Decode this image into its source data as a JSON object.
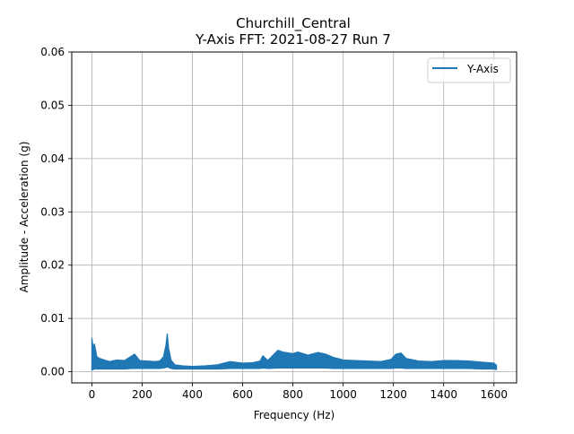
{
  "chart_data": {
    "type": "line",
    "title": "Churchill_Central",
    "subtitle": "Y-Axis FFT: 2021-08-27 Run 7",
    "xlabel": "Frequency (Hz)",
    "ylabel": "Amplitude - Acceleration (g)",
    "xlim": [
      -80,
      1690
    ],
    "ylim": [
      -0.0021,
      0.06
    ],
    "x_ticks": [
      0,
      200,
      400,
      600,
      800,
      1000,
      1200,
      1400,
      1600
    ],
    "x_tick_labels": [
      "0",
      "200",
      "400",
      "600",
      "800",
      "1000",
      "1200",
      "1400",
      "1600"
    ],
    "y_ticks": [
      0.0,
      0.01,
      0.02,
      0.03,
      0.04,
      0.05,
      0.06
    ],
    "y_tick_labels": [
      "0.00",
      "0.01",
      "0.02",
      "0.03",
      "0.04",
      "0.05",
      "0.06"
    ],
    "grid": true,
    "legend_position": "top-right",
    "series": [
      {
        "name": "Y-Axis",
        "color": "#1f77b4",
        "x": [
          0,
          5,
          10,
          20,
          30,
          50,
          70,
          100,
          130,
          160,
          170,
          190,
          220,
          250,
          270,
          285,
          295,
          300,
          305,
          315,
          330,
          360,
          400,
          450,
          500,
          550,
          600,
          640,
          670,
          680,
          700,
          740,
          760,
          800,
          820,
          860,
          900,
          930,
          960,
          1000,
          1050,
          1100,
          1150,
          1190,
          1210,
          1230,
          1250,
          1300,
          1350,
          1400,
          1450,
          1500,
          1550,
          1600,
          1610
        ],
        "upper": [
          0.0063,
          0.0045,
          0.0052,
          0.0028,
          0.0025,
          0.0022,
          0.0019,
          0.0022,
          0.0021,
          0.003,
          0.0033,
          0.0021,
          0.002,
          0.0019,
          0.002,
          0.0028,
          0.005,
          0.0071,
          0.0045,
          0.0022,
          0.0013,
          0.0011,
          0.001,
          0.0011,
          0.0013,
          0.0019,
          0.0016,
          0.0017,
          0.002,
          0.003,
          0.0021,
          0.004,
          0.0037,
          0.0034,
          0.0037,
          0.0031,
          0.0036,
          0.0033,
          0.0027,
          0.0022,
          0.0021,
          0.002,
          0.0019,
          0.0023,
          0.0033,
          0.0035,
          0.0025,
          0.002,
          0.0019,
          0.0021,
          0.0021,
          0.002,
          0.0018,
          0.0016,
          0.0012
        ],
        "lower": [
          0.0003,
          0.0004,
          0.0005,
          0.0005,
          0.0005,
          0.0005,
          0.0005,
          0.0005,
          0.0005,
          0.0006,
          0.0006,
          0.0006,
          0.0006,
          0.0006,
          0.0006,
          0.0007,
          0.0008,
          0.0009,
          0.0008,
          0.0006,
          0.0005,
          0.0005,
          0.0005,
          0.0005,
          0.0005,
          0.0006,
          0.0006,
          0.0006,
          0.0006,
          0.0007,
          0.0006,
          0.0007,
          0.0007,
          0.0007,
          0.0007,
          0.0007,
          0.0007,
          0.0007,
          0.0006,
          0.0006,
          0.0006,
          0.0006,
          0.0006,
          0.0006,
          0.0007,
          0.0007,
          0.0006,
          0.0006,
          0.0006,
          0.0006,
          0.0006,
          0.0006,
          0.0005,
          0.0005,
          0.0004
        ]
      }
    ]
  }
}
